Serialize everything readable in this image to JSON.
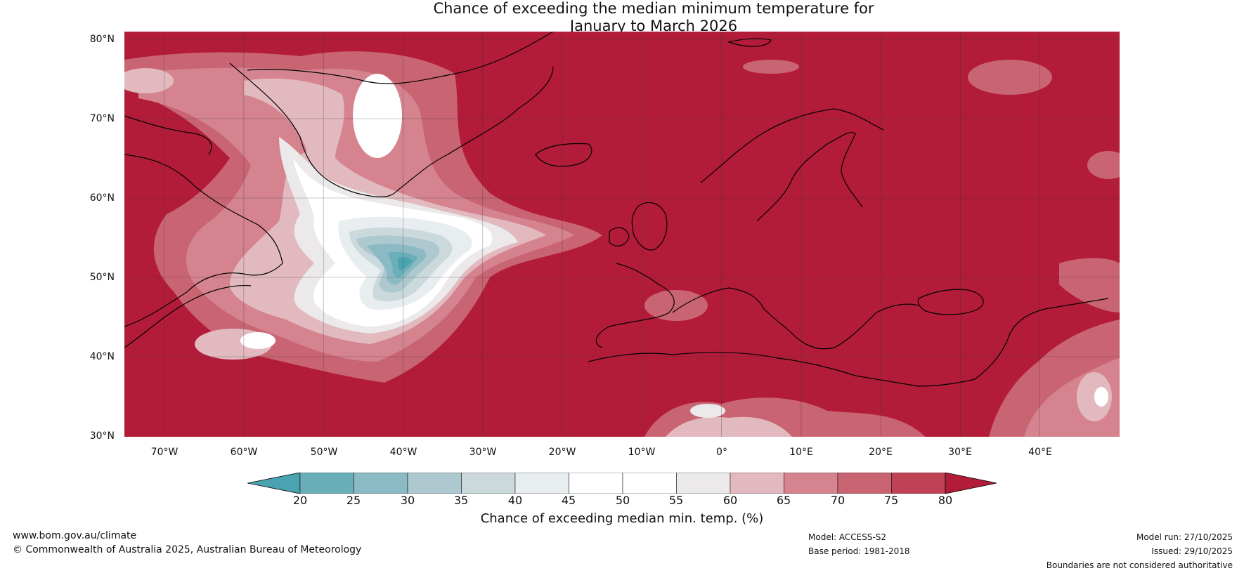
{
  "title": {
    "line1": "Chance of exceeding the median minimum temperature for",
    "line2": "January to March 2026"
  },
  "map": {
    "latitude_labels": [
      "80°N",
      "70°N",
      "60°N",
      "50°N",
      "40°N",
      "30°N"
    ],
    "longitude_labels": [
      "70°W",
      "60°W",
      "50°W",
      "40°W",
      "30°W",
      "20°W",
      "10°W",
      "0°",
      "10°E",
      "20°E",
      "30°E",
      "40°E"
    ],
    "extent": {
      "lon_min": -75,
      "lon_max": 50,
      "lat_min": 30,
      "lat_max": 81
    }
  },
  "colorbar": {
    "title": "Chance of exceeding median min. temp. (%)",
    "ticks": [
      "20",
      "25",
      "30",
      "35",
      "40",
      "45",
      "50",
      "55",
      "60",
      "65",
      "70",
      "75",
      "80"
    ],
    "colors": {
      "below_20": "#4aa3b0",
      "b20_25": "#6aaeb9",
      "b25_30": "#8cbac4",
      "b30_35": "#adc8cf",
      "b35_40": "#cbd8dc",
      "b40_45": "#e8eef0",
      "b45_50": "#ffffff",
      "b50_55": "#ffffff",
      "b55_60": "#ebe9e9",
      "b60_65": "#e2b9bf",
      "b65_70": "#d5838f",
      "b70_75": "#c96472",
      "b75_80": "#bf4255",
      "above_80": "#b21c38"
    }
  },
  "footer": {
    "website": "www.bom.gov.au/climate",
    "copyright": "© Commonwealth of Australia 2025, Australian Bureau of Meteorology",
    "model": "Model: ACCESS-S2",
    "base_period": "Base period: 1981-2018",
    "model_run": "Model run: 27/10/2025",
    "issued": "Issued: 29/10/2025",
    "disclaimer": "Boundaries are not considered authoritative"
  }
}
